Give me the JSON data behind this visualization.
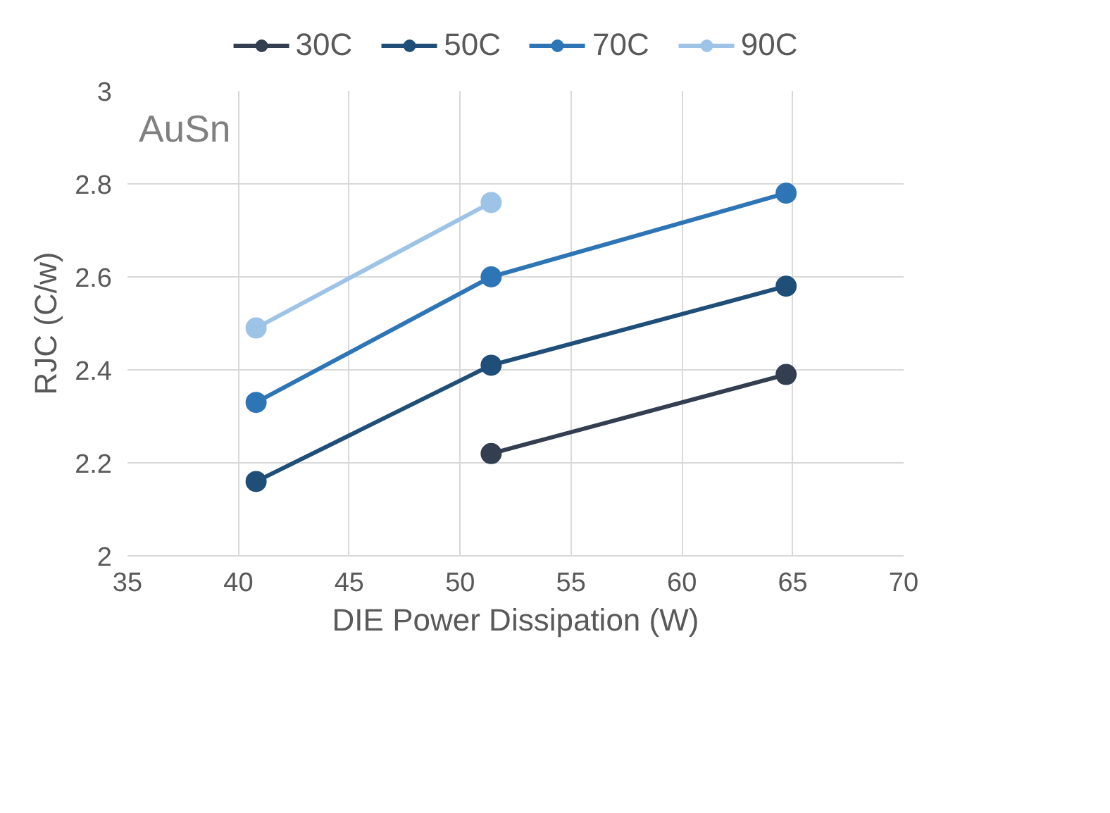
{
  "chart_data": {
    "type": "line",
    "xlabel": "DIE Power Dissipation (W)",
    "ylabel": "RJC (C/w)",
    "annotations": [
      "AuSn"
    ],
    "xlim": [
      35,
      70
    ],
    "xticks": [
      35,
      40,
      45,
      50,
      55,
      60,
      65,
      70
    ],
    "ylim": [
      2,
      3
    ],
    "yticks": [
      2,
      2.2,
      2.4,
      2.6,
      2.8,
      3
    ],
    "grid": true,
    "legend": "top",
    "marker": "circle",
    "line_style": "solid",
    "series": [
      {
        "name": "30C",
        "color": "#333f50",
        "x": [
          51.4,
          64.7
        ],
        "values": [
          2.22,
          2.39
        ]
      },
      {
        "name": "50C",
        "color": "#1f4e79",
        "x": [
          40.8,
          51.4,
          64.7
        ],
        "values": [
          2.16,
          2.41,
          2.58
        ]
      },
      {
        "name": "70C",
        "color": "#2e75b6",
        "x": [
          40.8,
          51.4,
          64.7
        ],
        "values": [
          2.33,
          2.6,
          2.78
        ]
      },
      {
        "name": "90C",
        "color": "#9dc3e6",
        "x": [
          40.8,
          51.4
        ],
        "values": [
          2.49,
          2.76
        ]
      }
    ]
  }
}
